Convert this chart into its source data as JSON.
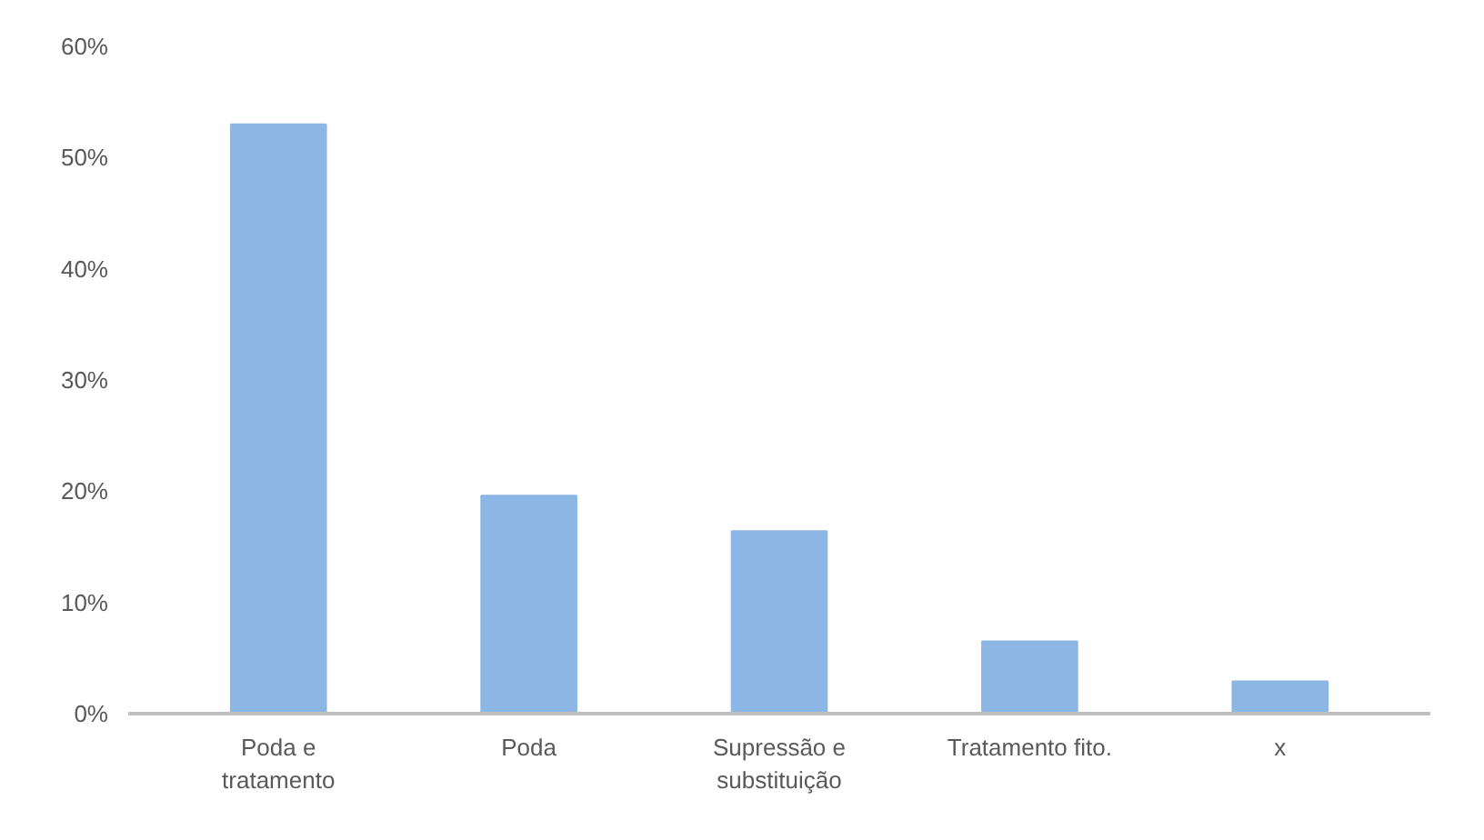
{
  "chart_data": {
    "type": "bar",
    "categories": [
      "Poda e\ntratamento",
      "Poda",
      "Supressão e\nsubstituição",
      "Tratamento fito.",
      "x"
    ],
    "values": [
      53,
      19.6,
      16.4,
      6.5,
      2.9
    ],
    "color": "#8cb6e4",
    "ylim": [
      0,
      60
    ],
    "yticks": [
      {
        "value": 0,
        "label": "0%"
      },
      {
        "value": 10,
        "label": "10%"
      },
      {
        "value": 20,
        "label": "20%"
      },
      {
        "value": 30,
        "label": "30%"
      },
      {
        "value": 40,
        "label": "40%"
      },
      {
        "value": 50,
        "label": "50%"
      },
      {
        "value": 60,
        "label": "60%"
      }
    ],
    "grid": false
  }
}
